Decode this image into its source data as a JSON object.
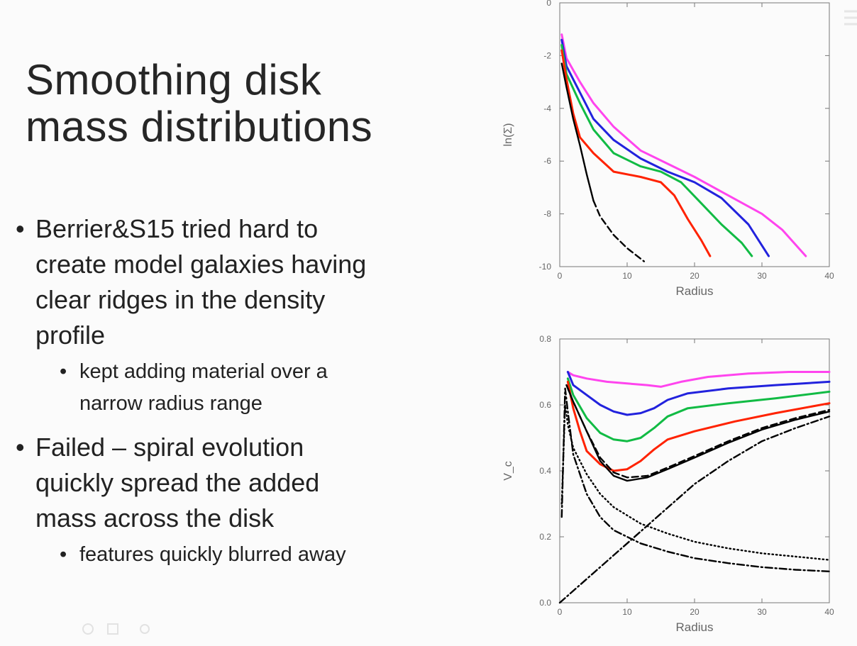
{
  "slide": {
    "title_lines": [
      "Smoothing disk",
      "mass distributions"
    ],
    "bullets": [
      {
        "text_lines": [
          "Berrier&S15 tried hard to",
          "create model galaxies having",
          "clear ridges in the density",
          "profile"
        ],
        "sub": [
          {
            "text_lines": [
              "kept adding material over a",
              "narrow radius range"
            ]
          }
        ]
      },
      {
        "text_lines": [
          "Failed – spiral evolution",
          "quickly spread the added",
          "mass across the disk"
        ],
        "sub": [
          {
            "text_lines": [
              "features quickly blurred away"
            ]
          }
        ]
      }
    ]
  },
  "chart_data": [
    {
      "type": "line",
      "xlabel": "Radius",
      "ylabel": "ln(Σ)",
      "xlim": [
        0,
        40
      ],
      "ylim": [
        -10,
        0
      ],
      "xticks": [
        "0",
        "10",
        "20",
        "30",
        "40"
      ],
      "yticks": [
        "0",
        "-2",
        "-4",
        "-6",
        "-8",
        "-10"
      ],
      "series": [
        {
          "color": "#ff44ee",
          "style": "solid",
          "points": [
            [
              0.3,
              -1.2
            ],
            [
              1,
              -2.1
            ],
            [
              3,
              -3.0
            ],
            [
              5,
              -3.8
            ],
            [
              8,
              -4.7
            ],
            [
              12,
              -5.6
            ],
            [
              16,
              -6.1
            ],
            [
              20,
              -6.6
            ],
            [
              25,
              -7.3
            ],
            [
              30,
              -8.0
            ],
            [
              33,
              -8.6
            ],
            [
              36.5,
              -9.6
            ]
          ]
        },
        {
          "color": "#2222dd",
          "style": "solid",
          "points": [
            [
              0.3,
              -1.4
            ],
            [
              1,
              -2.4
            ],
            [
              3,
              -3.4
            ],
            [
              5,
              -4.4
            ],
            [
              8,
              -5.2
            ],
            [
              12,
              -5.9
            ],
            [
              16,
              -6.4
            ],
            [
              20,
              -6.8
            ],
            [
              24,
              -7.4
            ],
            [
              28,
              -8.4
            ],
            [
              31,
              -9.6
            ]
          ]
        },
        {
          "color": "#11bb44",
          "style": "solid",
          "points": [
            [
              0.3,
              -1.6
            ],
            [
              1,
              -2.7
            ],
            [
              3,
              -3.8
            ],
            [
              5,
              -4.8
            ],
            [
              8,
              -5.7
            ],
            [
              12,
              -6.2
            ],
            [
              15,
              -6.4
            ],
            [
              18,
              -6.8
            ],
            [
              21,
              -7.6
            ],
            [
              24,
              -8.4
            ],
            [
              27,
              -9.1
            ],
            [
              28.5,
              -9.6
            ]
          ]
        },
        {
          "color": "#ff2200",
          "style": "solid",
          "points": [
            [
              0.3,
              -1.8
            ],
            [
              1,
              -2.9
            ],
            [
              2,
              -4.2
            ],
            [
              3,
              -5.1
            ],
            [
              5,
              -5.7
            ],
            [
              8,
              -6.4
            ],
            [
              12,
              -6.6
            ],
            [
              15,
              -6.8
            ],
            [
              17,
              -7.3
            ],
            [
              19,
              -8.2
            ],
            [
              21,
              -9.0
            ],
            [
              22.3,
              -9.6
            ]
          ]
        },
        {
          "color": "#000000",
          "style": "solid",
          "points": [
            [
              0.3,
              -2.3
            ],
            [
              1,
              -3.2
            ],
            [
              2,
              -4.4
            ],
            [
              3,
              -5.4
            ],
            [
              4,
              -6.5
            ],
            [
              5,
              -7.5
            ]
          ]
        },
        {
          "color": "#000000",
          "style": "dashed",
          "points": [
            [
              5,
              -7.5
            ],
            [
              6,
              -8.1
            ],
            [
              8,
              -8.8
            ],
            [
              10,
              -9.3
            ],
            [
              12,
              -9.7
            ],
            [
              12.5,
              -9.8
            ]
          ]
        }
      ]
    },
    {
      "type": "line",
      "xlabel": "Radius",
      "ylabel": "V_c",
      "xlim": [
        0,
        40
      ],
      "ylim": [
        0,
        0.8
      ],
      "xticks": [
        "0",
        "10",
        "20",
        "30",
        "40"
      ],
      "yticks": [
        "0.0",
        "0.2",
        "0.4",
        "0.6",
        "0.8"
      ],
      "series": [
        {
          "color": "#ff44ee",
          "style": "solid",
          "points": [
            [
              1.2,
              0.7
            ],
            [
              2,
              0.69
            ],
            [
              3,
              0.685
            ],
            [
              4,
              0.68
            ],
            [
              7,
              0.67
            ],
            [
              10,
              0.665
            ],
            [
              13,
              0.66
            ],
            [
              15,
              0.655
            ],
            [
              18,
              0.67
            ],
            [
              22,
              0.685
            ],
            [
              28,
              0.695
            ],
            [
              34,
              0.7
            ],
            [
              40,
              0.7
            ]
          ]
        },
        {
          "color": "#2222dd",
          "style": "solid",
          "points": [
            [
              1.2,
              0.7
            ],
            [
              2,
              0.66
            ],
            [
              4,
              0.63
            ],
            [
              6,
              0.6
            ],
            [
              8,
              0.58
            ],
            [
              10,
              0.57
            ],
            [
              12,
              0.575
            ],
            [
              14,
              0.59
            ],
            [
              16,
              0.615
            ],
            [
              19,
              0.635
            ],
            [
              25,
              0.65
            ],
            [
              32,
              0.66
            ],
            [
              40,
              0.67
            ]
          ]
        },
        {
          "color": "#11bb44",
          "style": "solid",
          "points": [
            [
              1.2,
              0.68
            ],
            [
              2,
              0.63
            ],
            [
              4,
              0.56
            ],
            [
              6,
              0.515
            ],
            [
              8,
              0.495
            ],
            [
              10,
              0.49
            ],
            [
              12,
              0.5
            ],
            [
              14,
              0.53
            ],
            [
              16,
              0.565
            ],
            [
              19,
              0.59
            ],
            [
              25,
              0.605
            ],
            [
              32,
              0.62
            ],
            [
              40,
              0.64
            ]
          ]
        },
        {
          "color": "#ff2200",
          "style": "solid",
          "points": [
            [
              1.2,
              0.67
            ],
            [
              2,
              0.59
            ],
            [
              3,
              0.52
            ],
            [
              4,
              0.46
            ],
            [
              6,
              0.42
            ],
            [
              8,
              0.4
            ],
            [
              10,
              0.405
            ],
            [
              12,
              0.43
            ],
            [
              14,
              0.465
            ],
            [
              16,
              0.495
            ],
            [
              20,
              0.52
            ],
            [
              26,
              0.55
            ],
            [
              32,
              0.575
            ],
            [
              40,
              0.605
            ]
          ]
        },
        {
          "color": "#000000",
          "style": "dashed",
          "points": [
            [
              1,
              0.66
            ],
            [
              2,
              0.61
            ],
            [
              4,
              0.52
            ],
            [
              6,
              0.44
            ],
            [
              8,
              0.395
            ],
            [
              10,
              0.38
            ],
            [
              13,
              0.385
            ],
            [
              16,
              0.41
            ],
            [
              20,
              0.445
            ],
            [
              25,
              0.49
            ],
            [
              30,
              0.53
            ],
            [
              35,
              0.56
            ],
            [
              40,
              0.585
            ]
          ]
        },
        {
          "color": "#000000",
          "style": "solid",
          "points": [
            [
              1,
              0.66
            ],
            [
              2,
              0.61
            ],
            [
              4,
              0.52
            ],
            [
              6,
              0.43
            ],
            [
              8,
              0.385
            ],
            [
              10,
              0.37
            ],
            [
              13,
              0.38
            ],
            [
              16,
              0.405
            ],
            [
              20,
              0.44
            ],
            [
              25,
              0.485
            ],
            [
              30,
              0.525
            ],
            [
              35,
              0.555
            ],
            [
              40,
              0.58
            ]
          ]
        },
        {
          "color": "#000000",
          "style": "dotted",
          "points": [
            [
              0.3,
              0.3
            ],
            [
              0.8,
              0.6
            ],
            [
              1.2,
              0.54
            ],
            [
              2,
              0.47
            ],
            [
              4,
              0.39
            ],
            [
              6,
              0.33
            ],
            [
              8,
              0.29
            ],
            [
              12,
              0.24
            ],
            [
              16,
              0.21
            ],
            [
              20,
              0.185
            ],
            [
              25,
              0.165
            ],
            [
              30,
              0.15
            ],
            [
              35,
              0.14
            ],
            [
              40,
              0.13
            ]
          ]
        },
        {
          "color": "#000000",
          "style": "dashdot",
          "points": [
            [
              0.3,
              0.26
            ],
            [
              0.8,
              0.65
            ],
            [
              1.2,
              0.58
            ],
            [
              2,
              0.45
            ],
            [
              4,
              0.33
            ],
            [
              6,
              0.26
            ],
            [
              8,
              0.22
            ],
            [
              12,
              0.18
            ],
            [
              16,
              0.155
            ],
            [
              20,
              0.135
            ],
            [
              25,
              0.12
            ],
            [
              30,
              0.108
            ],
            [
              35,
              0.1
            ],
            [
              40,
              0.095
            ]
          ]
        },
        {
          "color": "#000000",
          "style": "dashdot",
          "points": [
            [
              0,
              0.0
            ],
            [
              5,
              0.09
            ],
            [
              10,
              0.18
            ],
            [
              15,
              0.27
            ],
            [
              20,
              0.36
            ],
            [
              25,
              0.43
            ],
            [
              30,
              0.49
            ],
            [
              35,
              0.53
            ],
            [
              40,
              0.565
            ]
          ]
        }
      ]
    }
  ]
}
